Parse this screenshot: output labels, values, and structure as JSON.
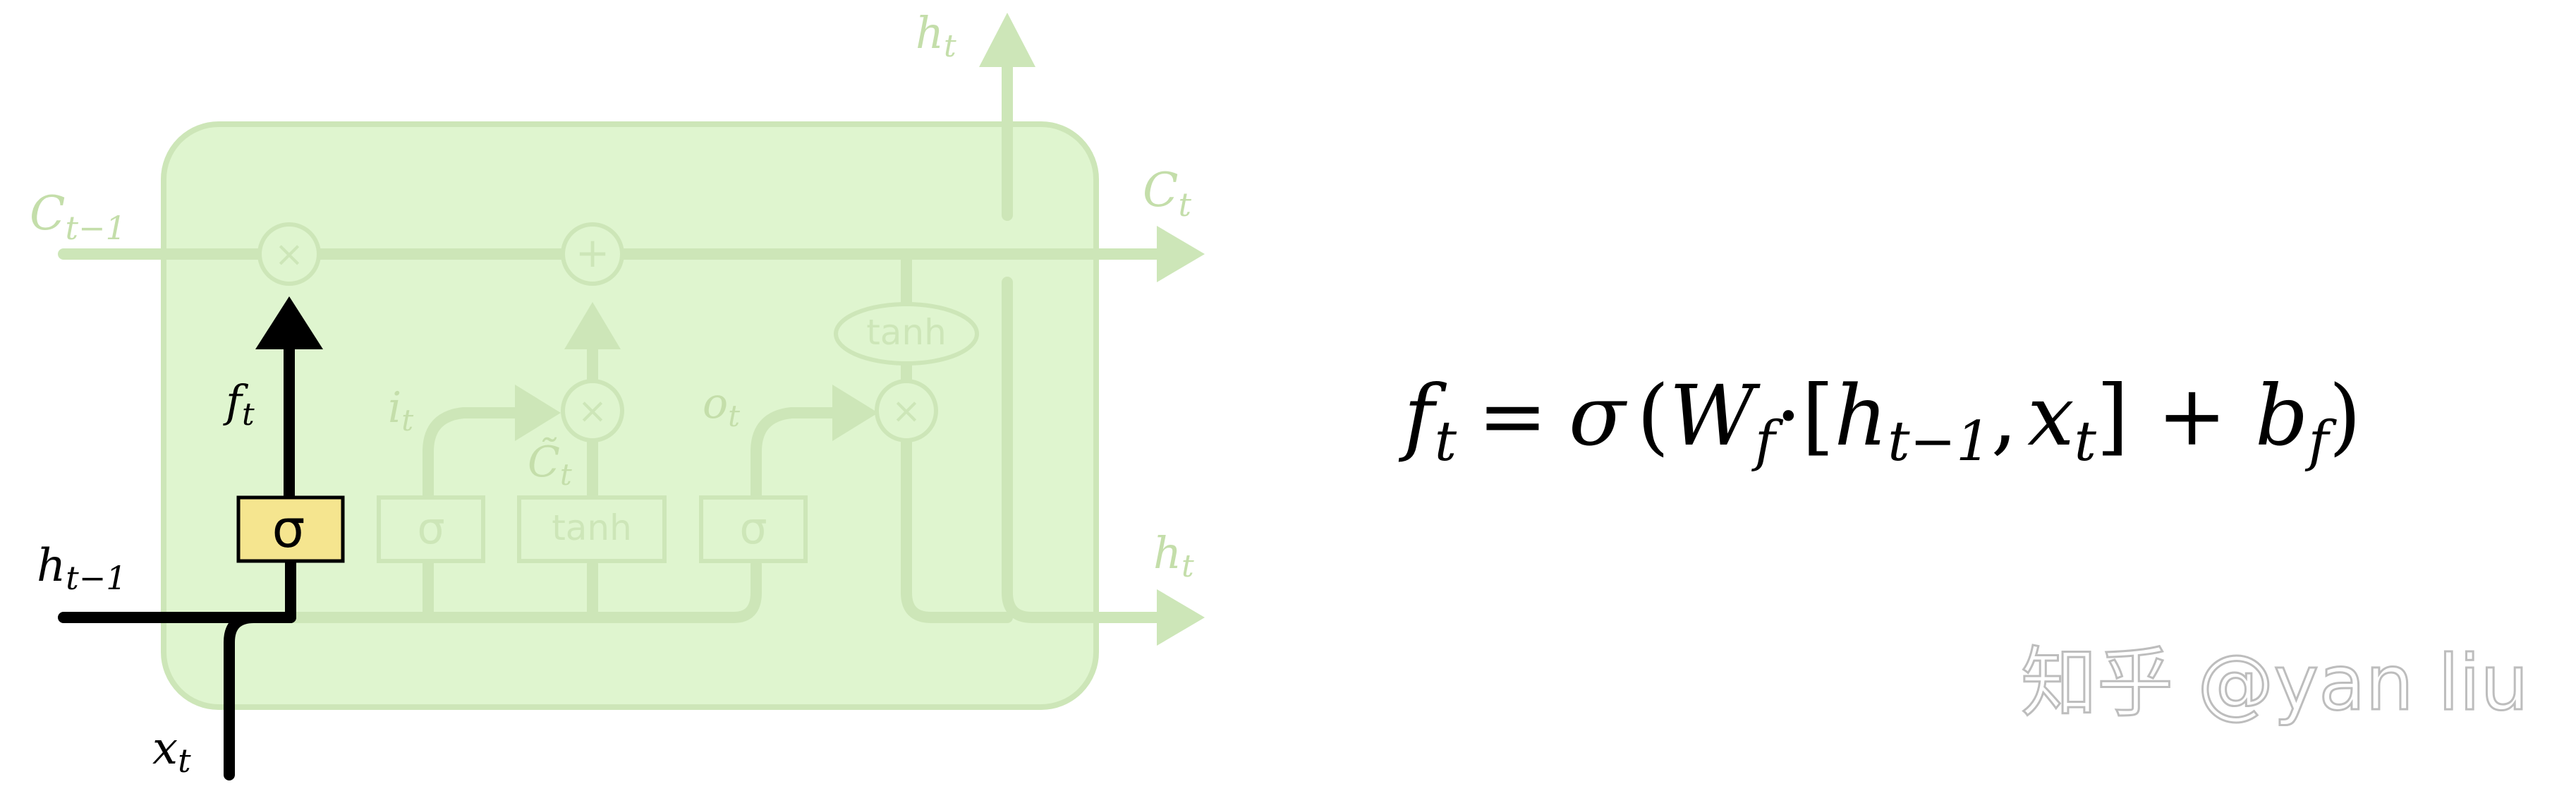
{
  "diagram": {
    "colors": {
      "cell_fill": "#dff5cf",
      "faded": "#cde6b8",
      "faded_label": "#c4deaa",
      "highlight_path": "#000000",
      "sigma_box": "#f5e58f",
      "watermark": "#bdbdbd"
    },
    "labels": {
      "c_prev": {
        "base": "C",
        "sub": "t−1"
      },
      "c_next": {
        "base": "C",
        "sub": "t"
      },
      "h_top": {
        "base": "h",
        "sub": "t"
      },
      "h_right": {
        "base": "h",
        "sub": "t"
      },
      "h_prev": {
        "base": "h",
        "sub": "t−1"
      },
      "x_in": {
        "base": "x",
        "sub": "t"
      },
      "f_gate": {
        "base": "f",
        "sub": "t"
      },
      "i_gate": {
        "base": "i",
        "sub": "t"
      },
      "c_tilde": {
        "base": "C̃",
        "sub": "t"
      },
      "o_gate": {
        "base": "o",
        "sub": "t"
      }
    },
    "ops": {
      "multiply": "×",
      "add": "+",
      "tanh": "tanh",
      "sigma": "σ"
    }
  },
  "equation": {
    "f": "f",
    "f_sub": "t",
    "equals": "=",
    "sigma": "σ",
    "lparen": "(",
    "W": "W",
    "W_sub": "f",
    "dot": "·",
    "lbracket": "[",
    "h": "h",
    "h_sub": "t−1",
    "comma": ",",
    "x": "x",
    "x_sub": "t",
    "rbracket": "]",
    "plus": "+",
    "b": "b",
    "b_sub": "f",
    "rparen": ")"
  },
  "watermark": "知乎 @yan liu"
}
